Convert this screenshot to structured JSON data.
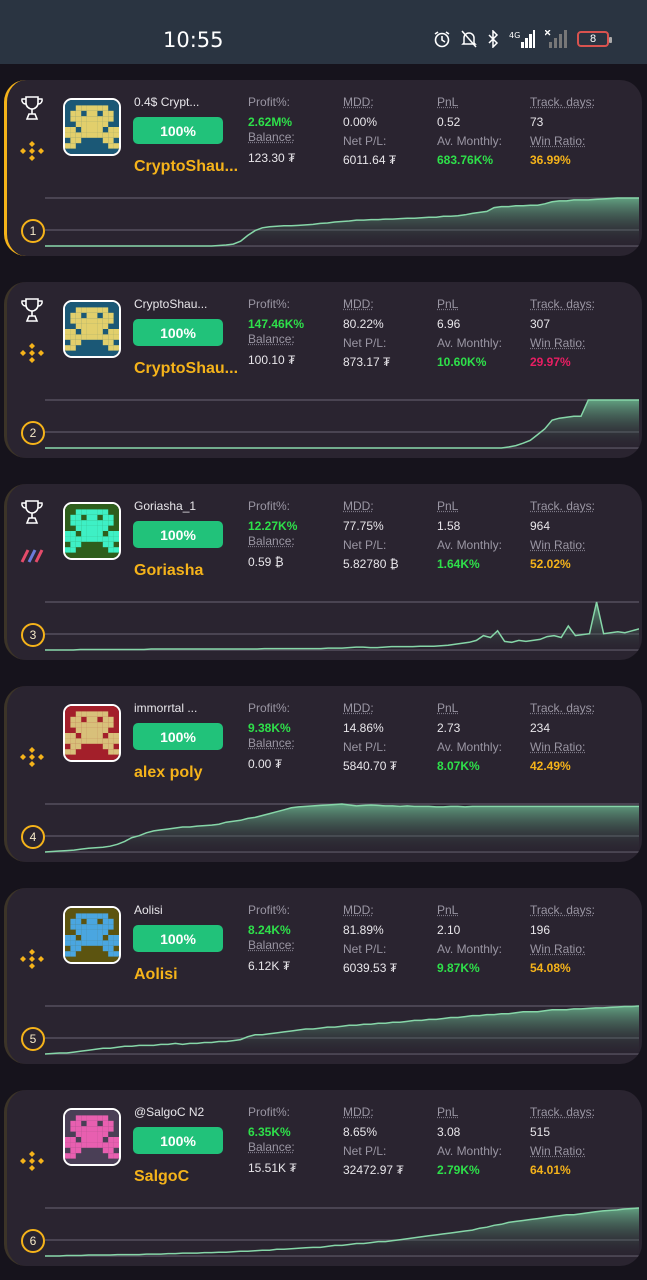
{
  "status": {
    "time": "10:55",
    "battery": "8",
    "network": "4G"
  },
  "labels": {
    "profit": "Profit%:",
    "balance": "Balance:",
    "mdd": "MDD:",
    "net_pl": "Net P/L:",
    "pnl": "PnL",
    "av_monthly": "Av. Monthly:",
    "track_days": "Track. days:",
    "win_ratio": "Win Ratio:"
  },
  "colors": {
    "accent": "#f5b31a",
    "badge": "#21c27a",
    "positive": "#2ee04a",
    "negative": "#e91e63",
    "card": "#2a2430"
  },
  "cards": [
    {
      "rank": "1",
      "bot_name": "0.4$ Crypt...",
      "percent": "100%",
      "owner": "CryptoShau...",
      "trophy": true,
      "exchange_icon": "binance-icon",
      "avatar_color": "#e2cf6c",
      "avatar_bg": "#1b5876",
      "profit": "2.62M%",
      "balance": "123.30 ₮",
      "mdd": "0.00%",
      "net_pl": "6011.64 ₮",
      "pnl": "0.52",
      "av_monthly": "683.76K%",
      "track_days": "73",
      "win_ratio": "36.99%",
      "win_color": "o",
      "equity": [
        0,
        0,
        0,
        0,
        0,
        0,
        0,
        0,
        0,
        0,
        0,
        0,
        0,
        0,
        0,
        0,
        0,
        0,
        0,
        0,
        0,
        0,
        0,
        0,
        1,
        2,
        4,
        10,
        22,
        32,
        38,
        40,
        41,
        42,
        42,
        43,
        44,
        45,
        47,
        48,
        50,
        51,
        52,
        54,
        54,
        55,
        55,
        56,
        56,
        57,
        58,
        58,
        59,
        60,
        60,
        62,
        62,
        63,
        65,
        68,
        70,
        72,
        80,
        82,
        82,
        84,
        84,
        85,
        85,
        88,
        92,
        94,
        94,
        96,
        96,
        96,
        97,
        98,
        99,
        100,
        100,
        100,
        100
      ]
    },
    {
      "rank": "2",
      "bot_name": "CryptoShau...",
      "percent": "100%",
      "owner": "CryptoShau...",
      "trophy": true,
      "exchange_icon": "binance-icon",
      "avatar_color": "#e2cf6c",
      "avatar_bg": "#1b5876",
      "profit": "147.46K%",
      "balance": "100.10 ₮",
      "mdd": "80.22%",
      "net_pl": "873.17 ₮",
      "pnl": "6.96",
      "av_monthly": "10.60K%",
      "track_days": "307",
      "win_ratio": "29.97%",
      "win_color": "r",
      "equity": [
        0,
        0,
        0,
        0,
        0,
        0,
        0,
        0,
        0,
        0,
        0,
        0,
        0,
        0,
        0,
        0,
        0,
        0,
        0,
        0,
        0,
        0,
        0,
        0,
        0,
        0,
        0,
        0,
        0,
        0,
        0,
        0,
        0,
        0,
        0,
        0,
        0,
        0,
        0,
        0,
        0,
        0,
        0,
        0,
        0,
        0,
        0,
        0,
        0,
        0,
        0,
        0,
        0,
        0,
        0,
        0,
        0,
        0,
        0,
        0,
        0,
        0,
        0,
        0,
        2,
        5,
        10,
        16,
        28,
        40,
        58,
        62,
        64,
        66,
        66,
        100,
        100,
        100,
        100,
        100,
        100,
        100,
        100
      ]
    },
    {
      "rank": "3",
      "bot_name": "Goriasha_1",
      "percent": "100%",
      "owner": "Goriasha",
      "trophy": true,
      "exchange_icon": "bybit-icon",
      "avatar_color": "#3ef0c5",
      "avatar_bg": "#2e5e1c",
      "profit": "12.27K%",
      "balance": "0.59 ₿",
      "mdd": "77.75%",
      "net_pl": "5.82780 ₿",
      "pnl": "1.58",
      "av_monthly": "1.64K%",
      "track_days": "964",
      "win_ratio": "52.02%",
      "win_color": "o",
      "equity": [
        0,
        0,
        0,
        0,
        0,
        1,
        1,
        1,
        1,
        1,
        1,
        1,
        1,
        1,
        1,
        2,
        2,
        2,
        2,
        2,
        2,
        2,
        2,
        2,
        2,
        2,
        2,
        2,
        2,
        2,
        2,
        3,
        3,
        3,
        3,
        3,
        3,
        3,
        3,
        3,
        4,
        4,
        4,
        5,
        6,
        6,
        5,
        5,
        6,
        7,
        7,
        7,
        7,
        8,
        8,
        8,
        9,
        10,
        12,
        14,
        16,
        20,
        30,
        26,
        40,
        18,
        16,
        20,
        18,
        20,
        22,
        28,
        30,
        26,
        50,
        30,
        32,
        34,
        100,
        34,
        36,
        38,
        36,
        40,
        44
      ]
    },
    {
      "rank": "4",
      "bot_name": "immorrtal ...",
      "percent": "100%",
      "owner": "alex poly",
      "trophy": false,
      "exchange_icon": "binance-icon",
      "avatar_color": "#d8c07a",
      "avatar_bg": "#a31f2a",
      "profit": "9.38K%",
      "balance": "0.00 ₮",
      "mdd": "14.86%",
      "net_pl": "5840.70 ₮",
      "pnl": "2.73",
      "av_monthly": "8.07K%",
      "track_days": "234",
      "win_ratio": "42.49%",
      "win_color": "o",
      "equity": [
        0,
        1,
        2,
        3,
        4,
        6,
        8,
        9,
        10,
        12,
        16,
        22,
        30,
        34,
        40,
        44,
        46,
        48,
        50,
        52,
        52,
        54,
        55,
        56,
        58,
        62,
        64,
        66,
        70,
        72,
        76,
        80,
        84,
        88,
        92,
        94,
        95,
        96,
        97,
        98,
        99,
        100,
        98,
        96,
        97,
        98,
        97,
        96,
        96,
        95,
        96,
        95,
        95,
        95,
        94,
        94,
        95,
        95,
        94,
        95,
        95,
        95,
        95,
        95,
        95,
        95,
        95,
        95,
        95,
        95,
        95,
        95,
        95,
        95,
        95,
        95,
        95,
        95,
        95,
        95,
        95,
        95,
        95
      ]
    },
    {
      "rank": "5",
      "bot_name": "Aolisi",
      "percent": "100%",
      "owner": "Aolisi",
      "trophy": false,
      "exchange_icon": "binance-icon",
      "avatar_color": "#4aa6e0",
      "avatar_bg": "#5c5410",
      "profit": "8.24K%",
      "balance": "6.12K ₮",
      "mdd": "81.89%",
      "net_pl": "6039.53 ₮",
      "pnl": "2.10",
      "av_monthly": "9.87K%",
      "track_days": "196",
      "win_ratio": "54.08%",
      "win_color": "o",
      "equity": [
        0,
        1,
        2,
        2,
        4,
        6,
        8,
        10,
        12,
        12,
        14,
        16,
        16,
        18,
        18,
        18,
        20,
        20,
        22,
        20,
        22,
        22,
        24,
        24,
        26,
        26,
        28,
        30,
        36,
        40,
        40,
        42,
        44,
        46,
        48,
        50,
        52,
        52,
        54,
        56,
        56,
        58,
        60,
        60,
        62,
        62,
        64,
        64,
        66,
        66,
        68,
        70,
        70,
        72,
        72,
        74,
        76,
        76,
        78,
        80,
        80,
        82,
        82,
        84,
        84,
        86,
        88,
        88,
        88,
        90,
        92,
        92,
        92,
        94,
        94,
        95,
        96,
        96,
        97,
        98,
        99,
        99,
        100
      ]
    },
    {
      "rank": "6",
      "bot_name": "@SalgoC N2",
      "percent": "100%",
      "owner": "SalgoC",
      "trophy": false,
      "exchange_icon": "binance-icon",
      "avatar_color": "#e85fb0",
      "avatar_bg": "#4a3f56",
      "profit": "6.35K%",
      "balance": "15.51K ₮",
      "mdd": "8.65%",
      "net_pl": "32472.97 ₮",
      "pnl": "3.08",
      "av_monthly": "2.79K%",
      "track_days": "515",
      "win_ratio": "64.01%",
      "win_color": "o",
      "equity": [
        0,
        0,
        0,
        1,
        1,
        1,
        2,
        2,
        2,
        2,
        3,
        3,
        3,
        3,
        4,
        4,
        4,
        5,
        5,
        6,
        6,
        6,
        7,
        7,
        8,
        8,
        9,
        10,
        10,
        11,
        12,
        12,
        14,
        14,
        15,
        16,
        17,
        18,
        18,
        20,
        22,
        22,
        24,
        26,
        26,
        28,
        30,
        30,
        32,
        34,
        36,
        38,
        40,
        42,
        44,
        46,
        48,
        50,
        52,
        54,
        58,
        60,
        64,
        66,
        70,
        72,
        74,
        76,
        78,
        80,
        82,
        84,
        86,
        86,
        88,
        90,
        92,
        94,
        95,
        96,
        98,
        99,
        100
      ]
    }
  ]
}
